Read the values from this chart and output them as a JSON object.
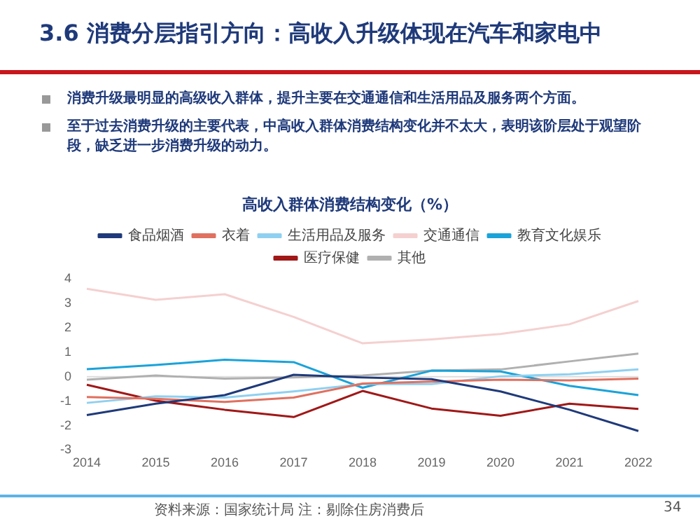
{
  "chart_data": {
    "type": "line",
    "title": "高收入群体消费结构变化（%）",
    "categories": [
      "2014",
      "2015",
      "2016",
      "2017",
      "2018",
      "2019",
      "2020",
      "2021",
      "2022"
    ],
    "series": [
      {
        "name": "食品烟酒",
        "color": "#1f3a7a",
        "values": [
          -1.57,
          -1.1,
          -0.75,
          0.08,
          -0.03,
          -0.1,
          -0.6,
          -1.35,
          -2.22
        ]
      },
      {
        "name": "衣着",
        "color": "#e0705f",
        "values": [
          -0.83,
          -0.9,
          -1.03,
          -0.85,
          -0.28,
          -0.2,
          -0.12,
          -0.15,
          -0.08
        ]
      },
      {
        "name": "生活用品及服务",
        "color": "#8fd0f0",
        "values": [
          -1.07,
          -0.8,
          -0.85,
          -0.6,
          -0.3,
          -0.3,
          0.02,
          0.1,
          0.3
        ]
      },
      {
        "name": "交通通信",
        "color": "#f5d0d0",
        "values": [
          3.6,
          3.15,
          3.38,
          2.45,
          1.37,
          1.53,
          1.75,
          2.15,
          3.1
        ]
      },
      {
        "name": "教育文化娱乐",
        "color": "#1aa3d9",
        "values": [
          0.31,
          0.48,
          0.7,
          0.6,
          -0.45,
          0.25,
          0.22,
          -0.37,
          -0.75
        ]
      },
      {
        "name": "医疗保健",
        "color": "#a01818",
        "values": [
          -0.33,
          -0.98,
          -1.35,
          -1.65,
          -0.58,
          -1.3,
          -1.6,
          -1.1,
          -1.32
        ]
      },
      {
        "name": "其他",
        "color": "#b0b0b0",
        "values": [
          -0.12,
          0.05,
          -0.08,
          -0.03,
          0.05,
          0.25,
          0.3,
          0.63,
          0.95
        ]
      }
    ],
    "ref_lines": [
      {
        "axis": "y",
        "value": 0,
        "color": "#dddddd"
      }
    ],
    "ylim": [
      -3,
      4
    ],
    "yticks": [
      -3,
      -2,
      -1,
      0,
      1,
      2,
      3,
      4
    ],
    "grid": false,
    "legend": "top",
    "marker": "none",
    "line_style": "solid",
    "annotations": [
      "3.6 消费分层指引方向：高收入升级体现在汽车和家电中",
      "消费升级最明显的高级收入群体，提升主要在交通通信和生活用品及服务两个方面。",
      "至于过去消费升级的主要代表，中高收入群体消费结构变化并不太大，表明该阶层处于观望阶段，缺乏进一步消费升级的动力。",
      "资料来源：国家统计局 注：剔除住房消费后",
      "34"
    ]
  }
}
